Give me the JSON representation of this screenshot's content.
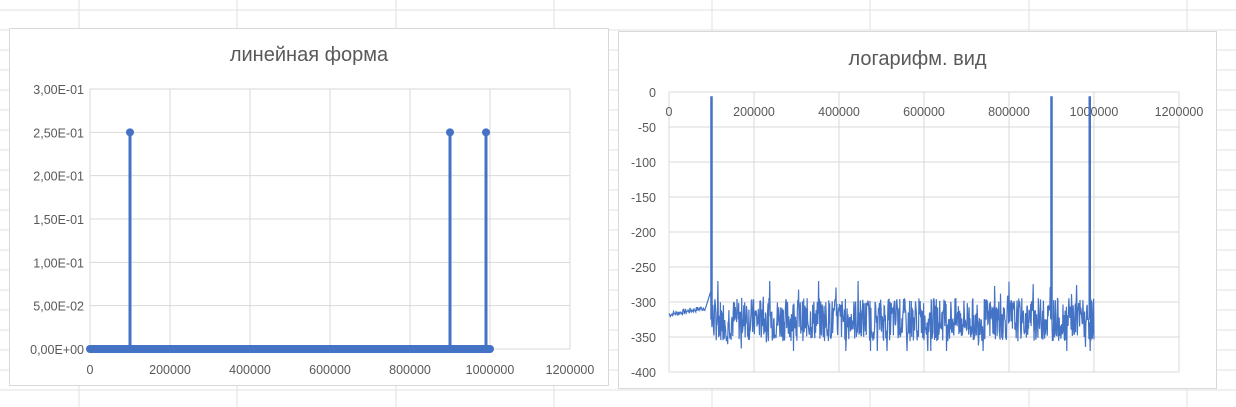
{
  "colors": {
    "series": "#4472c4",
    "gridline": "#d9d9d9",
    "axis_text": "#595959",
    "sheet_grid": "#e2e2e2"
  },
  "chart_data": [
    {
      "type": "scatter",
      "title": "линейная форма",
      "xlabel": "",
      "ylabel": "",
      "xlim": [
        0,
        1200000
      ],
      "ylim": [
        0,
        0.3
      ],
      "grid": true,
      "legend": "none",
      "x_ticks": [
        "0",
        "200000",
        "400000",
        "600000",
        "800000",
        "1000000",
        "1200000"
      ],
      "y_ticks": [
        "0,00E+00",
        "5,00E-02",
        "1,00E-01",
        "1,50E-01",
        "2,00E-01",
        "2,50E-01",
        "3,00E-01"
      ],
      "baseline": {
        "x_range": [
          0,
          1000000
        ],
        "y": 0
      },
      "series": [
        {
          "x": [
            100000,
            900000,
            990000
          ],
          "y": [
            0.25,
            0.25,
            0.25
          ]
        }
      ]
    },
    {
      "type": "line",
      "title": "логарифм. вид",
      "xlabel": "",
      "ylabel": "",
      "xlim": [
        0,
        1200000
      ],
      "ylim": [
        -400,
        0
      ],
      "grid": true,
      "legend": "none",
      "x_axis_position": "top",
      "x_ticks": [
        "0",
        "200000",
        "400000",
        "600000",
        "800000",
        "1000000",
        "1200000"
      ],
      "y_ticks": [
        "0",
        "-50",
        "-100",
        "-150",
        "-200",
        "-250",
        "-300",
        "-350",
        "-400"
      ],
      "noise_floor": {
        "x_range": [
          0,
          1000000
        ],
        "y_range": [
          -370,
          -270
        ],
        "typical": -325
      },
      "series": [
        {
          "x": [
            100000,
            900000,
            990000
          ],
          "y": [
            -6,
            -6,
            -6
          ]
        }
      ]
    }
  ]
}
